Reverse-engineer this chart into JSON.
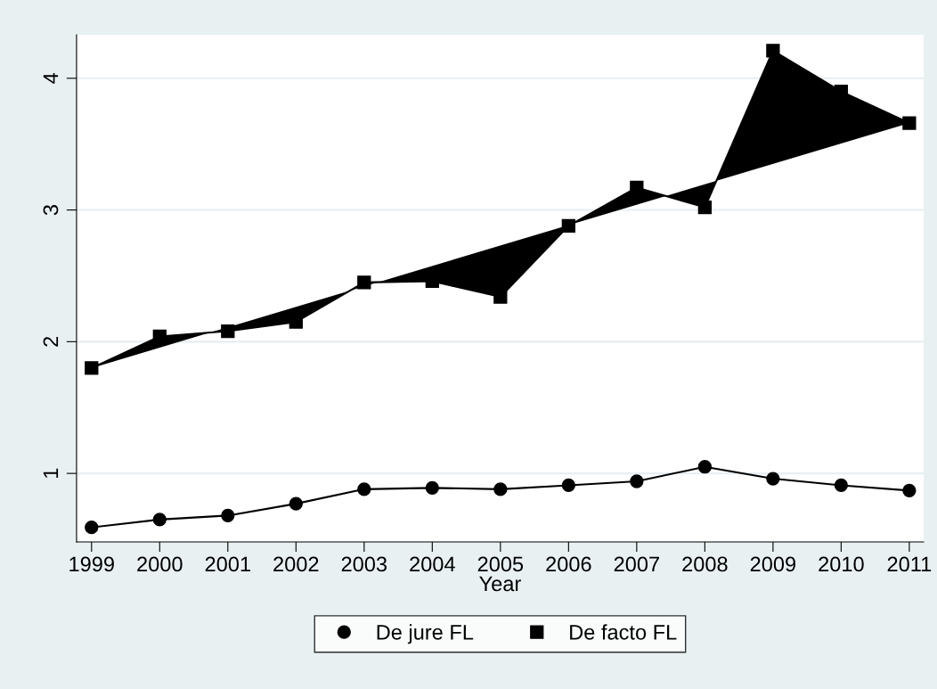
{
  "chart_data": {
    "type": "line",
    "xlabel": "Year",
    "x": [
      1999,
      2000,
      2001,
      2002,
      2003,
      2004,
      2005,
      2006,
      2007,
      2008,
      2009,
      2010,
      2011
    ],
    "series": [
      {
        "name": "De jure FL",
        "marker": "circle",
        "color": "#000000",
        "values": [
          0.59,
          0.65,
          0.68,
          0.77,
          0.88,
          0.89,
          0.88,
          0.91,
          0.94,
          1.05,
          0.96,
          0.91,
          0.87
        ]
      },
      {
        "name": "De facto FL",
        "type": "area",
        "marker": "square",
        "color": "#000000",
        "values": [
          1.8,
          2.04,
          2.08,
          2.15,
          2.45,
          2.46,
          2.34,
          2.88,
          3.17,
          3.02,
          4.21,
          3.9,
          3.66
        ]
      }
    ],
    "xlim": [
      1998.78,
      2011.21
    ],
    "xticks": [
      1999,
      2000,
      2001,
      2002,
      2003,
      2004,
      2005,
      2006,
      2007,
      2008,
      2009,
      2010,
      2011
    ],
    "ylim": [
      0.48,
      4.33
    ],
    "yticks": [
      1,
      2,
      3,
      4
    ],
    "grid": "y",
    "legend": "bottom",
    "line_style": "solid"
  }
}
